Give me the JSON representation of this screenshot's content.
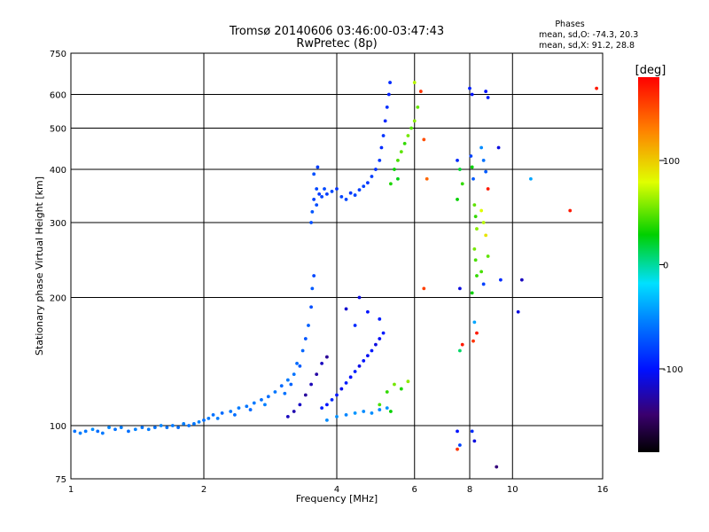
{
  "header": {
    "title_line1": "Tromsø 20140606 03:46:00-03:47:43",
    "title_line2": "RwPretec (8p)",
    "phases_label": "Phases",
    "phases_o": "mean, sd,O: -74.3, 20.3",
    "phases_x": "mean, sd,X:  91.2, 28.8"
  },
  "chart_data": {
    "type": "scatter",
    "title": "Tromsø 20140606 03:46:00-03:47:43",
    "subtitle": "RwPretec (8p)",
    "xlabel": "Frequency [MHz]",
    "ylabel": "Stationary phase Virtual Height [km]",
    "x_scale": "log",
    "y_scale": "log",
    "xlim": [
      1,
      16
    ],
    "ylim": [
      75,
      750
    ],
    "x_ticks": [
      1,
      2,
      4,
      6,
      8,
      10,
      16
    ],
    "x_tick_labels": [
      "1",
      "2",
      "4",
      "6",
      "8",
      "10",
      "16"
    ],
    "y_ticks": [
      75,
      100,
      200,
      300,
      400,
      500,
      600,
      750
    ],
    "y_tick_labels": [
      "75",
      "100",
      "200",
      "300",
      "400",
      "500",
      "600",
      "750"
    ],
    "grid": true,
    "colorbar": {
      "label": "[deg]",
      "range": [
        -180,
        180
      ],
      "ticks": [
        100,
        0,
        -100
      ],
      "tick_labels": [
        "100",
        "0",
        "-100"
      ]
    },
    "series": [
      {
        "points": [
          [
            1.02,
            97,
            -60
          ],
          [
            1.05,
            96,
            -55
          ],
          [
            1.08,
            97,
            -58
          ],
          [
            1.12,
            98,
            -50
          ],
          [
            1.15,
            97,
            -62
          ],
          [
            1.18,
            96,
            -57
          ],
          [
            1.22,
            99,
            -52
          ],
          [
            1.26,
            98,
            -60
          ],
          [
            1.3,
            99,
            -55
          ],
          [
            1.35,
            97,
            -61
          ],
          [
            1.4,
            98,
            -54
          ],
          [
            1.45,
            99,
            -58
          ],
          [
            1.5,
            98,
            -56
          ],
          [
            1.55,
            99,
            -60
          ],
          [
            1.6,
            100,
            -53
          ],
          [
            1.65,
            99,
            -59
          ],
          [
            1.7,
            100,
            -57
          ],
          [
            1.75,
            99,
            -62
          ],
          [
            1.8,
            101,
            -55
          ],
          [
            1.85,
            100,
            -60
          ],
          [
            1.9,
            101,
            -58
          ],
          [
            1.95,
            102,
            -54
          ],
          [
            2.0,
            103,
            -61
          ],
          [
            2.05,
            104,
            -57
          ],
          [
            2.1,
            106,
            -60
          ],
          [
            2.15,
            104,
            -55
          ],
          [
            2.2,
            107,
            -63
          ],
          [
            2.3,
            108,
            -58
          ],
          [
            2.35,
            106,
            -62
          ],
          [
            2.4,
            110,
            -56
          ],
          [
            2.5,
            111,
            -59
          ],
          [
            2.55,
            109,
            -64
          ],
          [
            2.6,
            113,
            -57
          ],
          [
            2.7,
            115,
            -61
          ],
          [
            2.75,
            112,
            -55
          ],
          [
            2.8,
            117,
            -62
          ],
          [
            2.9,
            120,
            -58
          ],
          [
            3.0,
            124,
            -64
          ],
          [
            3.05,
            119,
            -60
          ],
          [
            3.1,
            128,
            -57
          ],
          [
            3.15,
            125,
            -66
          ],
          [
            3.2,
            132,
            -60
          ],
          [
            3.25,
            140,
            -63
          ],
          [
            3.3,
            138,
            -70
          ],
          [
            3.35,
            150,
            -65
          ],
          [
            3.4,
            160,
            -72
          ],
          [
            3.45,
            172,
            -68
          ],
          [
            3.5,
            190,
            -75
          ],
          [
            3.52,
            210,
            -70
          ],
          [
            3.55,
            225,
            -78
          ],
          [
            3.5,
            300,
            -75
          ],
          [
            3.52,
            318,
            -72
          ],
          [
            3.55,
            340,
            -80
          ],
          [
            3.6,
            360,
            -78
          ],
          [
            3.55,
            390,
            -74
          ],
          [
            3.62,
            405,
            -82
          ],
          [
            3.6,
            330,
            -76
          ],
          [
            3.65,
            350,
            -84
          ],
          [
            3.7,
            345,
            -79
          ],
          [
            3.75,
            360,
            -77
          ],
          [
            3.8,
            350,
            -83
          ],
          [
            3.9,
            355,
            -78
          ],
          [
            4.0,
            360,
            -86
          ],
          [
            4.1,
            345,
            -80
          ],
          [
            4.2,
            340,
            -78
          ],
          [
            4.3,
            352,
            -84
          ],
          [
            4.4,
            348,
            -79
          ],
          [
            4.5,
            358,
            -82
          ],
          [
            4.6,
            365,
            -80
          ],
          [
            4.7,
            372,
            -85
          ],
          [
            4.8,
            385,
            -82
          ],
          [
            4.9,
            400,
            -88
          ],
          [
            5.0,
            420,
            -84
          ],
          [
            5.05,
            450,
            -90
          ],
          [
            5.1,
            480,
            -86
          ],
          [
            5.15,
            520,
            -92
          ],
          [
            5.2,
            560,
            -88
          ],
          [
            5.25,
            600,
            -94
          ],
          [
            5.28,
            640,
            -90
          ],
          [
            3.7,
            110,
            -95
          ],
          [
            3.8,
            112,
            -100
          ],
          [
            3.9,
            115,
            -92
          ],
          [
            4.0,
            118,
            -98
          ],
          [
            4.1,
            122,
            -105
          ],
          [
            4.2,
            126,
            -96
          ],
          [
            4.3,
            130,
            -102
          ],
          [
            4.4,
            134,
            -94
          ],
          [
            4.5,
            138,
            -108
          ],
          [
            4.6,
            142,
            -99
          ],
          [
            4.7,
            146,
            -104
          ],
          [
            4.8,
            150,
            -97
          ],
          [
            4.9,
            155,
            -110
          ],
          [
            5.0,
            160,
            -103
          ],
          [
            5.1,
            165,
            -96
          ],
          [
            3.8,
            103,
            -50
          ],
          [
            4.0,
            105,
            -48
          ],
          [
            4.2,
            106,
            -52
          ],
          [
            4.4,
            107,
            -46
          ],
          [
            4.6,
            108,
            -50
          ],
          [
            4.8,
            107,
            -49
          ],
          [
            5.0,
            109,
            -51
          ],
          [
            5.2,
            110,
            -47
          ],
          [
            3.1,
            105,
            -120
          ],
          [
            3.2,
            108,
            -125
          ],
          [
            3.3,
            112,
            -118
          ],
          [
            3.4,
            118,
            -130
          ],
          [
            3.5,
            125,
            -122
          ],
          [
            3.6,
            132,
            -128
          ],
          [
            3.7,
            140,
            -120
          ],
          [
            3.8,
            145,
            -132
          ],
          [
            4.5,
            200,
            -110
          ],
          [
            4.7,
            185,
            -100
          ],
          [
            5.0,
            178,
            -95
          ],
          [
            4.2,
            188,
            -115
          ],
          [
            4.4,
            172,
            -90
          ],
          [
            5.4,
            400,
            30
          ],
          [
            5.5,
            420,
            45
          ],
          [
            5.6,
            440,
            50
          ],
          [
            5.7,
            460,
            40
          ],
          [
            5.8,
            480,
            55
          ],
          [
            5.9,
            500,
            48
          ],
          [
            6.0,
            520,
            60
          ],
          [
            6.1,
            560,
            52
          ],
          [
            6.0,
            640,
            70
          ],
          [
            5.5,
            380,
            25
          ],
          [
            5.3,
            370,
            35
          ],
          [
            5.2,
            120,
            40
          ],
          [
            5.4,
            125,
            55
          ],
          [
            5.6,
            122,
            35
          ],
          [
            5.8,
            127,
            60
          ],
          [
            5.0,
            112,
            45
          ],
          [
            5.3,
            108,
            30
          ],
          [
            6.3,
            470,
            150
          ],
          [
            6.4,
            380,
            140
          ],
          [
            6.2,
            610,
            160
          ],
          [
            6.3,
            210,
            155
          ],
          [
            7.5,
            420,
            -90
          ],
          [
            7.6,
            400,
            20
          ],
          [
            7.7,
            370,
            40
          ],
          [
            7.5,
            340,
            30
          ],
          [
            7.6,
            210,
            -110
          ],
          [
            7.7,
            155,
            170
          ],
          [
            7.6,
            150,
            10
          ],
          [
            7.5,
            97,
            -100
          ],
          [
            7.6,
            90,
            -80
          ],
          [
            7.5,
            88,
            160
          ],
          [
            8.0,
            620,
            -95
          ],
          [
            8.1,
            600,
            -100
          ],
          [
            8.05,
            430,
            -80
          ],
          [
            8.1,
            405,
            30
          ],
          [
            8.15,
            380,
            -70
          ],
          [
            8.2,
            330,
            50
          ],
          [
            8.25,
            310,
            40
          ],
          [
            8.3,
            290,
            60
          ],
          [
            8.2,
            260,
            55
          ],
          [
            8.25,
            245,
            45
          ],
          [
            8.3,
            225,
            40
          ],
          [
            8.1,
            205,
            30
          ],
          [
            8.2,
            175,
            -40
          ],
          [
            8.3,
            165,
            170
          ],
          [
            8.15,
            158,
            160
          ],
          [
            8.1,
            97,
            -90
          ],
          [
            8.2,
            92,
            -110
          ],
          [
            8.5,
            450,
            -50
          ],
          [
            8.6,
            420,
            -60
          ],
          [
            8.7,
            395,
            -70
          ],
          [
            8.8,
            360,
            170
          ],
          [
            8.5,
            320,
            80
          ],
          [
            8.6,
            300,
            70
          ],
          [
            8.7,
            280,
            90
          ],
          [
            8.8,
            250,
            50
          ],
          [
            8.5,
            230,
            45
          ],
          [
            8.6,
            215,
            -80
          ],
          [
            8.7,
            610,
            -100
          ],
          [
            8.8,
            590,
            -95
          ],
          [
            9.3,
            450,
            -110
          ],
          [
            9.4,
            220,
            -90
          ],
          [
            9.2,
            80,
            -140
          ],
          [
            10.5,
            220,
            -120
          ],
          [
            10.3,
            185,
            -110
          ],
          [
            11.0,
            380,
            -40
          ],
          [
            13.5,
            320,
            170
          ],
          [
            15.5,
            620,
            170
          ]
        ]
      }
    ]
  }
}
